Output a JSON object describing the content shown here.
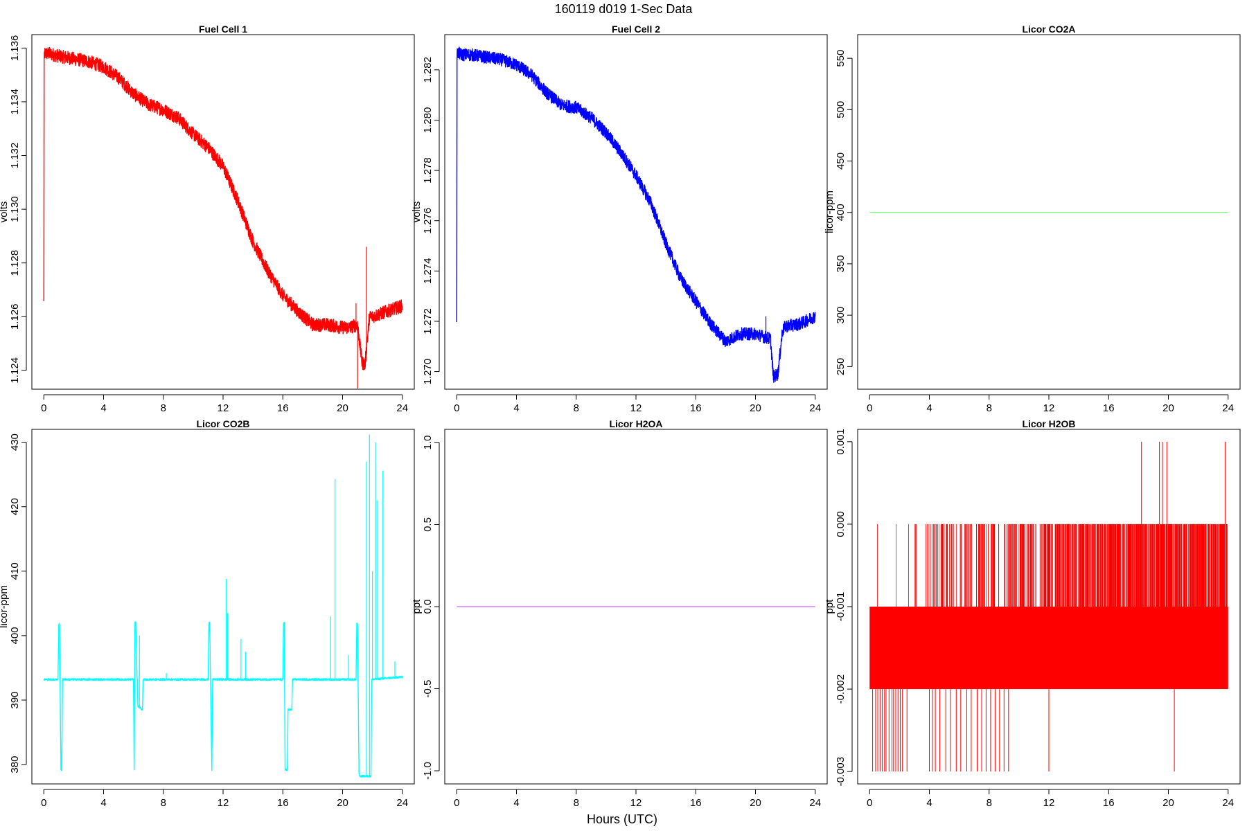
{
  "figure": {
    "title": "160119   d019   1-Sec Data",
    "xlabel": "Hours (UTC)"
  },
  "chart_data": [
    {
      "type": "line",
      "title": "Fuel Cell 1",
      "ylabel": "volts",
      "xlabel": "",
      "x_ticks": [
        0,
        4,
        8,
        12,
        16,
        20,
        24
      ],
      "y_ticks": [
        1.124,
        1.126,
        1.128,
        1.13,
        1.132,
        1.134,
        1.136
      ],
      "y_tick_labels": [
        "1.124",
        "1.126",
        "1.128",
        "1.130",
        "1.132",
        "1.134",
        "1.136"
      ],
      "xlim": [
        -0.8,
        24.8
      ],
      "ylim": [
        1.1233,
        1.1365
      ],
      "color": "#ff0000",
      "noise": 0.00025,
      "series": [
        {
          "x": [
            0,
            0.02,
            0.05,
            0.3,
            1,
            2,
            3,
            4,
            5,
            6,
            7,
            8,
            9,
            10,
            11,
            12,
            13,
            14,
            15,
            16,
            17,
            18,
            19,
            20,
            20.5,
            21,
            21.3,
            21.5,
            21.8,
            22,
            23,
            24
          ],
          "y": [
            1.1265,
            1.1355,
            1.1358,
            1.1358,
            1.1357,
            1.1356,
            1.1355,
            1.1353,
            1.1349,
            1.1343,
            1.1339,
            1.1337,
            1.1334,
            1.1328,
            1.1323,
            1.1316,
            1.1303,
            1.1288,
            1.1277,
            1.1268,
            1.1262,
            1.1257,
            1.1257,
            1.1256,
            1.1256,
            1.1257,
            1.1243,
            1.1242,
            1.126,
            1.126,
            1.1262,
            1.1264
          ]
        }
      ],
      "spikes": [
        {
          "x": 21.0,
          "y": 1.1232
        },
        {
          "x": 21.6,
          "y": 1.1286
        },
        {
          "x": 20.9,
          "y": 1.1265
        }
      ]
    },
    {
      "type": "line",
      "title": "Fuel Cell 2",
      "ylabel": "volts",
      "xlabel": "",
      "x_ticks": [
        0,
        4,
        8,
        12,
        16,
        20,
        24
      ],
      "y_ticks": [
        1.27,
        1.272,
        1.274,
        1.276,
        1.278,
        1.28,
        1.282
      ],
      "y_tick_labels": [
        "1.270",
        "1.272",
        "1.274",
        "1.276",
        "1.278",
        "1.280",
        "1.282"
      ],
      "xlim": [
        -0.8,
        24.8
      ],
      "ylim": [
        1.2693,
        1.2834
      ],
      "color": "#0000ff",
      "noise": 0.00025,
      "series": [
        {
          "x": [
            0,
            0.02,
            0.05,
            0.3,
            1,
            2,
            3,
            4,
            5,
            6,
            7,
            8,
            9,
            10,
            11,
            12,
            13,
            14,
            15,
            16,
            17,
            18,
            19,
            20,
            21,
            21.2,
            21.5,
            21.8,
            22,
            23,
            24
          ],
          "y": [
            1.2721,
            1.2825,
            1.2827,
            1.2826,
            1.2826,
            1.2825,
            1.2824,
            1.2822,
            1.2818,
            1.2811,
            1.2806,
            1.2805,
            1.2801,
            1.2795,
            1.2787,
            1.2778,
            1.2767,
            1.2751,
            1.2737,
            1.2728,
            1.2719,
            1.2712,
            1.2715,
            1.2715,
            1.2713,
            1.2698,
            1.2699,
            1.2716,
            1.2718,
            1.2719,
            1.2722
          ]
        }
      ],
      "spikes": [
        {
          "x": 20.7,
          "y": 1.2722
        }
      ]
    },
    {
      "type": "line",
      "title": "Licor CO2A",
      "ylabel": "licor-ppm",
      "xlabel": "",
      "x_ticks": [
        0,
        4,
        8,
        12,
        16,
        20,
        24
      ],
      "y_ticks": [
        250,
        300,
        350,
        400,
        450,
        500,
        550
      ],
      "y_tick_labels": [
        "250",
        "300",
        "350",
        "400",
        "450",
        "500",
        "550"
      ],
      "xlim": [
        -0.8,
        24.8
      ],
      "ylim": [
        228,
        573
      ],
      "color": "#66ff66",
      "noise": 0,
      "series": [
        {
          "x": [
            0,
            24
          ],
          "y": [
            400,
            400
          ]
        }
      ],
      "spikes": []
    },
    {
      "type": "line",
      "title": "Licor CO2B",
      "ylabel": "licor-ppm",
      "xlabel": "",
      "x_ticks": [
        0,
        4,
        8,
        12,
        16,
        20,
        24
      ],
      "y_ticks": [
        380,
        390,
        400,
        410,
        420,
        430
      ],
      "y_tick_labels": [
        "380",
        "390",
        "400",
        "410",
        "420",
        "430"
      ],
      "xlim": [
        -0.8,
        24.8
      ],
      "ylim": [
        377,
        432
      ],
      "color": "#00ffff",
      "noise": 0.15,
      "series": [
        {
          "x": [
            0,
            0.95,
            1.0,
            1.05,
            1.1,
            1.15,
            1.2,
            1.25,
            1.3,
            6.0,
            6.05,
            6.1,
            6.15,
            6.3,
            6.35,
            6.6,
            6.65,
            11.0,
            11.05,
            11.1,
            11.25,
            11.3,
            11.45,
            16.0,
            16.05,
            16.1,
            16.15,
            16.3,
            16.35,
            16.6,
            16.65,
            20.9,
            20.95,
            21.0,
            21.1,
            21.15,
            21.9,
            21.95,
            24
          ],
          "y": [
            393.2,
            393.2,
            401.8,
            401.8,
            389.5,
            379.2,
            379.2,
            393.2,
            393.2,
            393.2,
            379.2,
            402.0,
            402.0,
            389.0,
            389.0,
            388.5,
            393.2,
            393.2,
            402.0,
            402.0,
            379.2,
            393.2,
            393.2,
            393.2,
            402.0,
            402.0,
            379.2,
            379.2,
            388.5,
            388.5,
            393.2,
            393.2,
            401.8,
            401.8,
            378.8,
            378.2,
            378.2,
            393.2,
            393.6
          ]
        }
      ],
      "spikes": [
        {
          "x": 12.2,
          "y": 408.8
        },
        {
          "x": 12.3,
          "y": 403.5
        },
        {
          "x": 13.2,
          "y": 399.5
        },
        {
          "x": 13.5,
          "y": 397.5
        },
        {
          "x": 6.4,
          "y": 400.0
        },
        {
          "x": 8.2,
          "y": 394.2
        },
        {
          "x": 19.2,
          "y": 403.0
        },
        {
          "x": 19.5,
          "y": 424.3
        },
        {
          "x": 20.4,
          "y": 397.0
        },
        {
          "x": 21.6,
          "y": 427.0
        },
        {
          "x": 21.8,
          "y": 431.2
        },
        {
          "x": 22.0,
          "y": 410.0
        },
        {
          "x": 22.2,
          "y": 430.0
        },
        {
          "x": 22.3,
          "y": 421.0
        },
        {
          "x": 22.7,
          "y": 425.6
        },
        {
          "x": 23.5,
          "y": 396.0
        }
      ]
    },
    {
      "type": "line",
      "title": "Licor H2OA",
      "ylabel": "ppt",
      "xlabel": "",
      "x_ticks": [
        0,
        4,
        8,
        12,
        16,
        20,
        24
      ],
      "y_ticks": [
        -1.0,
        -0.5,
        0.0,
        0.5,
        1.0
      ],
      "y_tick_labels": [
        "-1.0",
        "-0.5",
        "0.0",
        "0.5",
        "1.0"
      ],
      "xlim": [
        -0.8,
        24.8
      ],
      "ylim": [
        -1.08,
        1.08
      ],
      "color": "#cc66ff",
      "noise": 0,
      "series": [
        {
          "x": [
            0,
            24
          ],
          "y": [
            0,
            0
          ]
        }
      ],
      "spikes": []
    },
    {
      "type": "line",
      "title": "Licor H2OB",
      "ylabel": "ppt",
      "xlabel": "",
      "x_ticks": [
        0,
        4,
        8,
        12,
        16,
        20,
        24
      ],
      "y_ticks": [
        -0.003,
        -0.002,
        -0.001,
        0.0,
        0.001
      ],
      "y_tick_labels": [
        "-0.003",
        "-0.002",
        "-0.001",
        "0.000",
        "0.001"
      ],
      "xlim": [
        -0.8,
        24.8
      ],
      "ylim": [
        -0.00315,
        0.00115
      ],
      "color": "#ff0000",
      "noise": 0,
      "band": {
        "x": [
          0,
          24
        ],
        "y": [
          -0.002,
          -0.001
        ]
      },
      "series": [],
      "upper_spike_range": [
        0,
        24
      ],
      "upper_spike_level": 0.0,
      "lower_spike_level": -0.003,
      "top_spikes_x": [
        18.2,
        19.4,
        19.6,
        19.9,
        23.8
      ],
      "top_spike_level": 0.001,
      "lower_spike_x": [
        0.2,
        0.4,
        0.55,
        0.7,
        0.85,
        1.0,
        1.1,
        1.3,
        1.5,
        1.6,
        1.75,
        1.9,
        2.05,
        2.2,
        2.5,
        4.0,
        4.2,
        4.4,
        4.7,
        5.1,
        5.4,
        5.8,
        6.1,
        6.5,
        6.8,
        7.2,
        7.5,
        7.8,
        8.1,
        8.4,
        8.7,
        9.0,
        9.3,
        12.0,
        20.4
      ]
    }
  ]
}
